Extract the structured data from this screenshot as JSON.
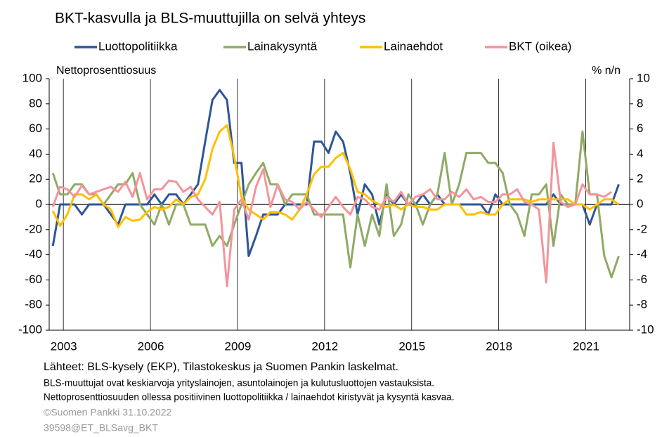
{
  "chart_data": {
    "type": "line",
    "title": "BKT-kasvulla ja BLS-muuttujilla on selvä yhteys",
    "y_label": "Nettoprosenttiosuus",
    "y2_label": "% n/n",
    "x": [
      2003,
      2003.25,
      2003.5,
      2003.75,
      2004,
      2004.25,
      2004.5,
      2004.75,
      2005,
      2005.25,
      2005.5,
      2005.75,
      2006,
      2006.25,
      2006.5,
      2006.75,
      2007,
      2007.25,
      2007.5,
      2007.75,
      2008,
      2008.25,
      2008.5,
      2008.75,
      2009,
      2009.25,
      2009.5,
      2009.75,
      2010,
      2010.25,
      2010.5,
      2010.75,
      2011,
      2011.25,
      2011.5,
      2011.75,
      2012,
      2012.25,
      2012.5,
      2012.75,
      2013,
      2013.25,
      2013.5,
      2013.75,
      2014,
      2014.25,
      2014.5,
      2014.75,
      2015,
      2015.25,
      2015.5,
      2015.75,
      2016,
      2016.25,
      2016.5,
      2016.75,
      2017,
      2017.25,
      2017.5,
      2017.75,
      2018,
      2018.25,
      2018.5,
      2018.75,
      2019,
      2019.25,
      2019.5,
      2019.75,
      2020,
      2020.25,
      2020.5,
      2020.75,
      2021,
      2021.25,
      2021.5,
      2021.75,
      2022,
      2022.25,
      2022.5
    ],
    "series": [
      {
        "name": "Luottopolitiikka",
        "color": "#2f5597",
        "values": [
          -33,
          0,
          0,
          0,
          -8,
          0,
          0,
          0,
          -8,
          -16,
          0,
          0,
          0,
          0,
          8,
          0,
          8,
          8,
          0,
          8,
          16,
          50,
          83,
          91,
          83,
          33,
          33,
          -41,
          -25,
          -8,
          -8,
          -8,
          0,
          0,
          0,
          0,
          50,
          50,
          41,
          58,
          50,
          25,
          -8,
          16,
          8,
          -16,
          8,
          0,
          8,
          0,
          0,
          8,
          0,
          8,
          0,
          0,
          0,
          0,
          0,
          0,
          -8,
          8,
          0,
          0,
          0,
          0,
          0,
          0,
          0,
          8,
          0,
          0,
          0,
          0,
          -16,
          0,
          0,
          0,
          16
        ]
      },
      {
        "name": "Lainakysyntä",
        "color": "#8faa66",
        "values": [
          25,
          8,
          8,
          16,
          16,
          8,
          8,
          0,
          8,
          16,
          16,
          25,
          0,
          -8,
          -16,
          0,
          -16,
          0,
          0,
          -16,
          -16,
          -16,
          -33,
          -25,
          -33,
          -16,
          0,
          16,
          25,
          33,
          16,
          16,
          0,
          8,
          8,
          8,
          -8,
          -8,
          -8,
          -8,
          -8,
          -50,
          -8,
          -33,
          -8,
          -25,
          16,
          -25,
          -16,
          8,
          0,
          -16,
          0,
          8,
          41,
          0,
          16,
          41,
          41,
          41,
          33,
          33,
          25,
          0,
          -8,
          -25,
          8,
          8,
          16,
          -33,
          8,
          0,
          0,
          58,
          8,
          8,
          -41,
          -58,
          -41
        ]
      },
      {
        "name": "Lainaehdot",
        "color": "#ffc000",
        "values": [
          -5,
          -17,
          -8,
          8,
          8,
          4,
          8,
          0,
          -4,
          -18,
          -10,
          -13,
          -12,
          -6,
          -2,
          -4,
          -2,
          4,
          0,
          6,
          8,
          20,
          44,
          58,
          63,
          38,
          6,
          -4,
          -8,
          -12,
          -6,
          -6,
          -8,
          -12,
          -4,
          8,
          24,
          30,
          30,
          37,
          41,
          28,
          10,
          8,
          3,
          0,
          -2,
          0,
          -4,
          0,
          -2,
          -2,
          -4,
          -4,
          0,
          0,
          0,
          -8,
          -8,
          -6,
          -8,
          -8,
          0,
          4,
          4,
          4,
          2,
          4,
          4,
          4,
          4,
          4,
          0,
          0,
          -4,
          0,
          4,
          4,
          0
        ]
      },
      {
        "name": "BKT (oikea)",
        "color": "#f4949c",
        "axis": "y2",
        "values": [
          -0.2,
          1.4,
          1.2,
          0.6,
          1.5,
          0.8,
          1.0,
          1.2,
          1.4,
          1.0,
          1.8,
          0.6,
          2.5,
          0.4,
          1.2,
          1.2,
          1.9,
          1.8,
          1.0,
          1.4,
          0.4,
          -0.2,
          -0.8,
          0.2,
          -6.5,
          -0.4,
          0.4,
          -1.2,
          1.4,
          2.8,
          -0.2,
          1.6,
          0.4,
          0.2,
          -0.4,
          0.2,
          -0.4,
          -1.0,
          -0.2,
          0.6,
          -0.2,
          -0.8,
          0.6,
          0.4,
          -0.2,
          -0.4,
          0.6,
          0.2,
          1.0,
          0.0,
          0.6,
          0.8,
          1.2,
          0.4,
          0.4,
          1.0,
          0.6,
          1.2,
          0.4,
          0.6,
          0.2,
          0.2,
          0.8,
          0.8,
          1.2,
          0.2,
          0.0,
          -0.4,
          -6.2,
          4.9,
          0.2,
          -0.2,
          0.0,
          1.6,
          0.8,
          0.8,
          0.6,
          1.0,
          null
        ]
      }
    ],
    "xlim": [
      2002.875,
      2022.875
    ],
    "xticks": [
      {
        "value": 2003.375,
        "label": "2003"
      },
      {
        "value": 2006.375,
        "label": "2006"
      },
      {
        "value": 2009.375,
        "label": "2009"
      },
      {
        "value": 2012.375,
        "label": "2012"
      },
      {
        "value": 2015.375,
        "label": "2015"
      },
      {
        "value": 2018.375,
        "label": "2018"
      },
      {
        "value": 2021.375,
        "label": "2021"
      }
    ],
    "ylim": [
      -100,
      100
    ],
    "yticks": [
      -100,
      -80,
      -60,
      -40,
      -20,
      0,
      20,
      40,
      60,
      80,
      100
    ],
    "y2lim": [
      -10,
      10
    ],
    "y2ticks": [
      -10,
      -8,
      -6,
      -4,
      -2,
      0,
      2,
      4,
      6,
      8,
      10
    ],
    "legend": "top",
    "source": "Lähteet: BLS-kysely (EKP), Tilastokeskus ja Suomen Pankin laskelmat.",
    "notes": [
      "BLS-muuttujat ovat keskiarvoja yrityslainojen, asuntolainojen ja kulutusluottojen vastauksista.",
      "Nettoprosenttiosuuden ollessa positiivinen luottopolitiikka / lainaehdot kiristyvät ja kysyntä kasvaa."
    ],
    "credits": [
      "©Suomen Pankki 31.10.2022",
      "39598@ET_BLSavg_BKT"
    ]
  }
}
